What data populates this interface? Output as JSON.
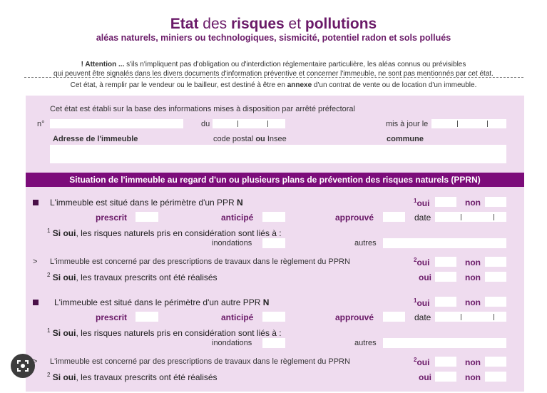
{
  "header": {
    "title_part1": "Etat",
    "title_part2": " des ",
    "title_part3": "risques",
    "title_part4": " et ",
    "title_part5": "pollutions",
    "subtitle": "aléas naturels, miniers ou technologiques, sismicité, potentiel radon et sols pollués",
    "attention_label": "! Attention ...",
    "attention_line1": " s'ils n'impliquent pas d'obligation ou d'interdiction réglementaire particulière, les aléas connus ou prévisibles",
    "attention_line2": "qui peuvent être signalés dans les divers documents d'information préventive et concerner l'immeuble, ne sont pas mentionnés par cet état.",
    "notice_a": "Cet état, à remplir par le vendeur ou le bailleur, est destiné à être en ",
    "notice_b": "annexe",
    "notice_c": " d'un contrat de vente ou de location d'un immeuble."
  },
  "arrete": {
    "intro": "Cet état est établi sur la base des informations mises à disposition par arrêté préfectoral",
    "num_label": "n°",
    "num_value": "",
    "du_label": "du",
    "maj_label": "mis à jour le",
    "adresse_label": "Adresse de l'immeuble",
    "cp_label_a": "code postal ",
    "cp_label_b": "ou",
    "cp_label_c": " Insee",
    "commune_label": "commune",
    "adresse_value": ""
  },
  "section_title": "Situation de l'immeuble au regard d'un ou plusieurs plans de prévention des risques naturels (PPRN)",
  "blocks": [
    {
      "q1": "L'immeuble est situé dans le périmètre d'un PPR ",
      "q1b": "N"
    },
    {
      "q1": "L'immeuble est situé dans le périmètre d'un autre PPR ",
      "q1b": "N"
    }
  ],
  "labels": {
    "oui": "oui",
    "non": "non",
    "sup1": "1",
    "sup2": "2",
    "prescrit": "prescrit",
    "anticipe": "anticipé",
    "approuve": "approuvé",
    "date": "date",
    "si_oui": "Si oui",
    "risques_text": ", les risques naturels pris en considération sont liés à :",
    "inondations": "inondations",
    "autres": "autres",
    "arrow": ">",
    "q2": "L'immeuble est concerné par des prescriptions de travaux dans le règlement du PPRN",
    "travaux_text": ", les travaux prescrits ont été réalisés"
  },
  "colors": {
    "accent": "#7c0c7a",
    "panel": "#efdcef",
    "title": "#6a1a68"
  },
  "overlay": {
    "icon": "google-lens-icon"
  }
}
